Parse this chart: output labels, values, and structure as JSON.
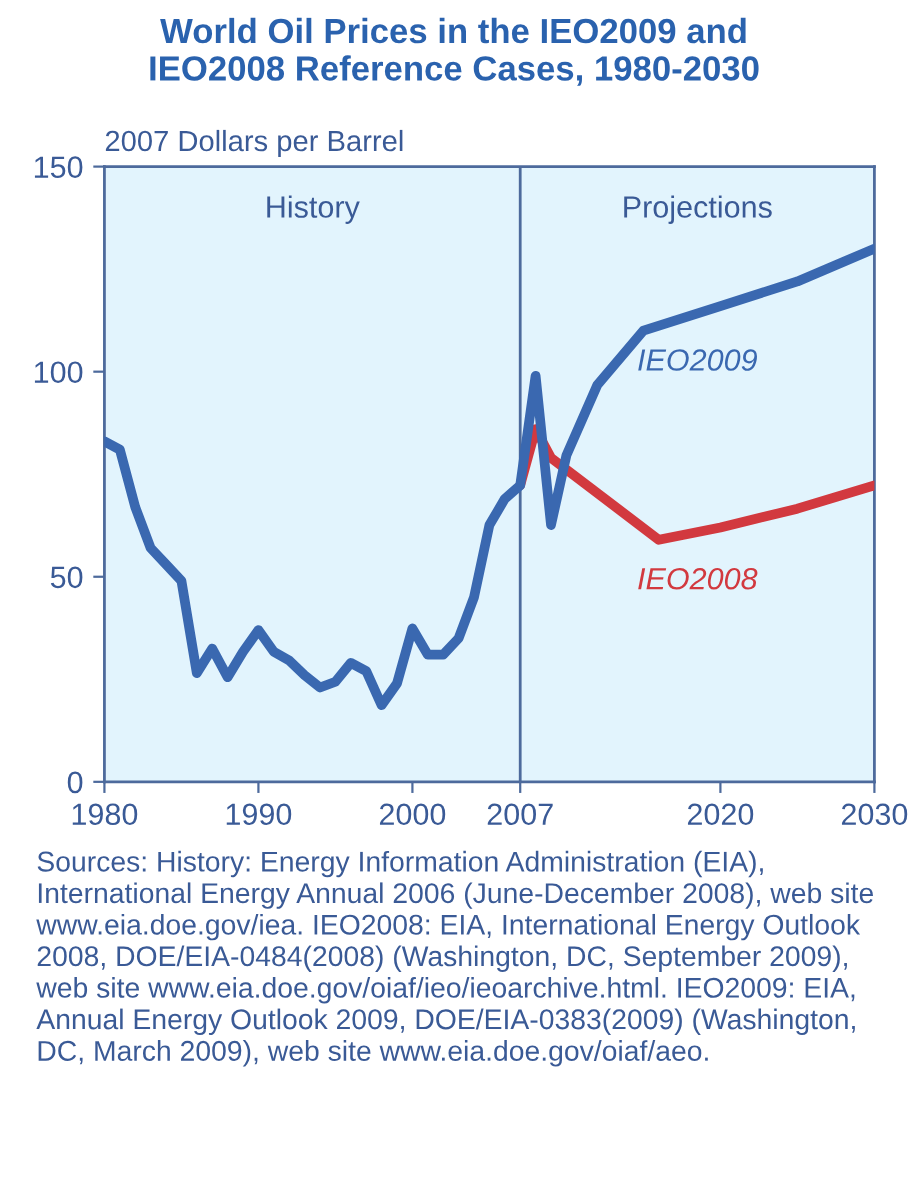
{
  "chart_data": {
    "type": "line",
    "title": "World Oil Prices in the IEO2009 and\nIEO2008 Reference Cases, 1980-2030",
    "ylabel": "2007 Dollars per Barrel",
    "series": [
      {
        "name": "IEO2009",
        "color": "#3a68b0",
        "x": [
          1980,
          1981,
          1982,
          1983,
          1984,
          1985,
          1986,
          1987,
          1988,
          1989,
          1990,
          1991,
          1992,
          1993,
          1994,
          1995,
          1996,
          1997,
          1998,
          1999,
          2000,
          2001,
          2002,
          2003,
          2004,
          2005,
          2006,
          2007,
          2008,
          2009,
          2010,
          2012,
          2015,
          2020,
          2025,
          2030
        ],
        "values": [
          83,
          81,
          67,
          57,
          53,
          49,
          26.5,
          32.5,
          25.5,
          31.7,
          37,
          31.7,
          29.6,
          26,
          23,
          24.4,
          29,
          27,
          18.7,
          24,
          37.4,
          31,
          31,
          35,
          45,
          62.6,
          69,
          72.3,
          99,
          62.6,
          79.6,
          96.7,
          110,
          116,
          122,
          130
        ]
      },
      {
        "name": "IEO2008",
        "color": "#d2393f",
        "x": [
          2007,
          2008,
          2009,
          2016,
          2020,
          2025,
          2030
        ],
        "values": [
          72.3,
          86,
          79,
          59,
          62,
          66.6,
          72.3
        ]
      }
    ],
    "xlim": [
      1980,
      2030
    ],
    "xticks": [
      1980,
      1990,
      2000,
      2007,
      2020,
      2030
    ],
    "ylim": [
      0,
      150
    ],
    "yticks": [
      0,
      50,
      100,
      150
    ],
    "grid": false,
    "legend": false,
    "marker": "none",
    "line_style": "solid",
    "ref_lines": [
      {
        "axis": "x",
        "value": 2007,
        "color": "#4d6a9c"
      }
    ],
    "bands": [
      {
        "axis": "x",
        "from": 1980,
        "to": 2007,
        "label": "History",
        "color": "#e2f4fd"
      },
      {
        "axis": "x",
        "from": 2007,
        "to": 2030,
        "label": "Projections",
        "color": "#e2f4fd"
      }
    ],
    "annotations": [
      "Sources: History: Energy Information Administration (EIA), International Energy Annual 2006 (June-December 2008), web site www.eia.doe.gov/iea. IEO2008: EIA, International Energy Outlook 2008, DOE/EIA-0484(2008) (Washington, DC, September 2009), web site www.eia.doe.gov/oiaf/ieo/ieoarchive.html. IEO2009: EIA, Annual Energy Outlook 2009, DOE/EIA-0383(2009) (Washington, DC, March 2009), web site www.eia.doe.gov/oiaf/aeo."
    ]
  }
}
